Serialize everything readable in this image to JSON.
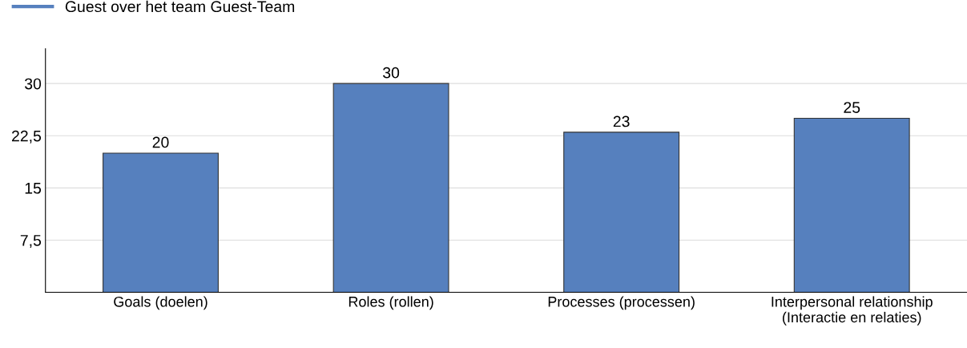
{
  "chart_data": {
    "type": "bar",
    "categories": [
      "Goals (doelen)",
      "Roles (rollen)",
      "Processes (processen)",
      "Interpersonal relationship\n(Interactie en relaties)"
    ],
    "series": [
      {
        "name": "Guest over het team Guest-Team",
        "color": "#5680be",
        "values": [
          20,
          30,
          23,
          25
        ]
      }
    ],
    "ylim": [
      0,
      35
    ],
    "yticks": [
      {
        "value": 7.5,
        "label": "7,5"
      },
      15,
      {
        "value": 22.5,
        "label": "22,5"
      },
      30
    ],
    "grid": "y",
    "legend": "top left",
    "data_labels": true
  }
}
